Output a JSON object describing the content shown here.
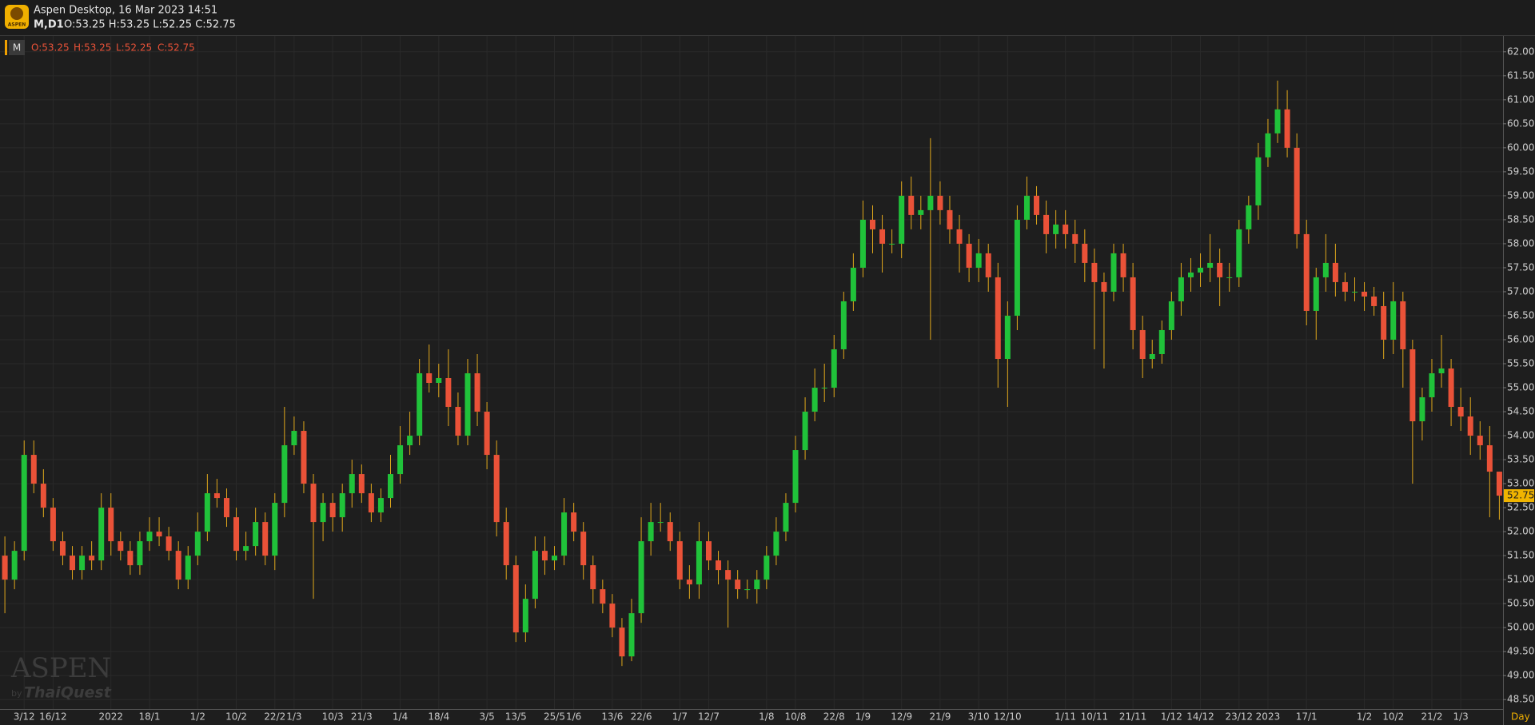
{
  "header": {
    "title": "Aspen Desktop, 16 Mar 2023 14:51",
    "symbol": "M,D1",
    "quote": "O:53.25 H:53.25 L:52.25 C:52.75",
    "logo": "ASPEN"
  },
  "watermark": {
    "brand": "ASPEN",
    "by": "by",
    "company": "ThaiQuest"
  },
  "chart_data": {
    "type": "candlestick",
    "legend": {
      "symbol": "M",
      "open": "O:53.25",
      "high": "H:53.25",
      "low": "L:52.25",
      "close": "C:52.75"
    },
    "x_unit": "Day",
    "up_color": "#20c23a",
    "down_color": "#ea5238",
    "wick_color": "#e0a81c",
    "grid": true,
    "ylim": [
      48.32,
      62.33
    ],
    "yticks": [
      {
        "value": 48.5,
        "label": "48.50"
      },
      {
        "value": 49,
        "label": "49.00"
      },
      {
        "value": 49.5,
        "label": "49.50"
      },
      {
        "value": 50,
        "label": "50.00"
      },
      {
        "value": 50.5,
        "label": "50.50"
      },
      {
        "value": 51,
        "label": "51.00"
      },
      {
        "value": 51.5,
        "label": "51.50"
      },
      {
        "value": 52,
        "label": "52.00"
      },
      {
        "value": 52.5,
        "label": "52.50"
      },
      {
        "value": 53,
        "label": "53.00"
      },
      {
        "value": 53.5,
        "label": "53.50"
      },
      {
        "value": 54,
        "label": "54.00"
      },
      {
        "value": 54.5,
        "label": "54.50"
      },
      {
        "value": 55,
        "label": "55.00"
      },
      {
        "value": 55.5,
        "label": "55.50"
      },
      {
        "value": 56,
        "label": "56.00"
      },
      {
        "value": 56.5,
        "label": "56.50"
      },
      {
        "value": 57,
        "label": "57.00"
      },
      {
        "value": 57.5,
        "label": "57.50"
      },
      {
        "value": 58,
        "label": "58.00"
      },
      {
        "value": 58.5,
        "label": "58.50"
      },
      {
        "value": 59,
        "label": "59.00"
      },
      {
        "value": 59.5,
        "label": "59.50"
      },
      {
        "value": 60,
        "label": "60.00"
      },
      {
        "value": 60.5,
        "label": "60.50"
      },
      {
        "value": 61,
        "label": "61.00"
      },
      {
        "value": 61.5,
        "label": "61.50"
      },
      {
        "value": 62,
        "label": "62.00"
      }
    ],
    "categories": [
      null,
      null,
      "3/12",
      null,
      null,
      "16/12",
      null,
      null,
      null,
      null,
      null,
      "2022",
      null,
      null,
      null,
      "18/1",
      null,
      null,
      null,
      null,
      "1/2",
      null,
      null,
      null,
      "10/2",
      null,
      null,
      null,
      "22/2",
      null,
      "1/3",
      null,
      null,
      null,
      "10/3",
      null,
      null,
      "21/3",
      null,
      null,
      null,
      "1/4",
      null,
      null,
      null,
      "18/4",
      null,
      null,
      null,
      null,
      "3/5",
      null,
      null,
      "13/5",
      null,
      null,
      null,
      "25/5",
      null,
      "1/6",
      null,
      null,
      null,
      "13/6",
      null,
      null,
      "22/6",
      null,
      null,
      null,
      "1/7",
      null,
      null,
      "12/7",
      null,
      null,
      null,
      null,
      null,
      "1/8",
      null,
      null,
      "10/8",
      null,
      null,
      null,
      "22/8",
      null,
      null,
      "1/9",
      null,
      null,
      null,
      "12/9",
      null,
      null,
      null,
      "21/9",
      null,
      null,
      null,
      "3/10",
      null,
      null,
      "12/10",
      null,
      null,
      null,
      null,
      null,
      "1/11",
      null,
      null,
      "10/11",
      null,
      null,
      null,
      "21/11",
      null,
      null,
      null,
      "1/12",
      null,
      null,
      "14/12",
      null,
      null,
      null,
      "23/12",
      null,
      null,
      "2023",
      null,
      null,
      null,
      "17/1",
      null,
      null,
      null,
      null,
      null,
      "1/2",
      null,
      null,
      "10/2",
      null,
      null,
      null,
      "21/2",
      null,
      null,
      "1/3",
      null,
      null,
      null,
      null
    ],
    "open": [
      51.5,
      51.0,
      51.6,
      53.6,
      53.0,
      52.5,
      51.8,
      51.5,
      51.2,
      51.5,
      51.4,
      52.5,
      51.8,
      51.6,
      51.3,
      51.8,
      52.0,
      51.9,
      51.6,
      51.0,
      51.5,
      52.0,
      52.8,
      52.7,
      52.3,
      51.6,
      51.7,
      52.2,
      51.5,
      52.6,
      53.8,
      54.1,
      53.0,
      52.2,
      52.6,
      52.3,
      52.8,
      53.2,
      52.8,
      52.4,
      52.7,
      53.2,
      53.8,
      54.0,
      55.3,
      55.1,
      55.2,
      54.6,
      54.0,
      55.3,
      54.5,
      53.6,
      52.2,
      51.3,
      49.9,
      50.6,
      51.6,
      51.4,
      51.5,
      52.4,
      52.0,
      51.3,
      50.8,
      50.5,
      50.0,
      49.4,
      50.3,
      51.8,
      52.2,
      52.2,
      51.8,
      51.0,
      50.9,
      51.8,
      51.4,
      51.2,
      51.0,
      50.8,
      50.8,
      51.0,
      51.5,
      52.0,
      52.6,
      53.7,
      54.5,
      55.0,
      55.0,
      55.8,
      56.8,
      57.5,
      58.5,
      58.3,
      58.0,
      58.0,
      59.0,
      58.6,
      58.7,
      59.0,
      58.7,
      58.3,
      58.0,
      57.5,
      57.8,
      57.3,
      55.6,
      56.5,
      58.5,
      59.0,
      58.6,
      58.2,
      58.4,
      58.2,
      58.0,
      57.6,
      57.2,
      57.0,
      57.8,
      57.3,
      56.2,
      55.6,
      55.7,
      56.2,
      56.8,
      57.3,
      57.4,
      57.5,
      57.6,
      57.3,
      57.3,
      58.3,
      58.8,
      59.8,
      60.3,
      60.8,
      60.0,
      58.2,
      56.6,
      57.3,
      57.6,
      57.2,
      57.0,
      57.0,
      56.9,
      56.7,
      56.0,
      56.8,
      55.8,
      54.3,
      54.8,
      55.3,
      55.4,
      54.6,
      54.4,
      54.0,
      53.8,
      53.25
    ],
    "high": [
      51.9,
      51.8,
      53.9,
      53.9,
      53.3,
      52.7,
      52.0,
      51.7,
      51.7,
      51.8,
      52.8,
      52.8,
      52.0,
      51.8,
      52.0,
      52.3,
      52.3,
      52.1,
      51.8,
      51.7,
      52.4,
      53.2,
      53.1,
      52.9,
      52.5,
      52.0,
      52.5,
      52.4,
      52.8,
      54.6,
      54.4,
      54.3,
      53.2,
      52.8,
      52.8,
      53.0,
      53.5,
      53.4,
      53.0,
      52.9,
      53.6,
      54.2,
      54.5,
      55.6,
      55.9,
      55.5,
      55.8,
      54.9,
      55.6,
      55.7,
      54.7,
      53.9,
      52.5,
      51.5,
      50.9,
      51.9,
      51.9,
      51.7,
      52.7,
      52.6,
      52.2,
      51.5,
      51.0,
      50.7,
      50.2,
      50.6,
      52.3,
      52.6,
      52.6,
      52.4,
      52.0,
      51.3,
      52.2,
      52.0,
      51.6,
      51.4,
      51.2,
      51.0,
      51.2,
      51.7,
      52.3,
      52.8,
      54.0,
      54.8,
      55.4,
      55.5,
      56.1,
      57.0,
      57.8,
      58.9,
      58.8,
      58.6,
      58.3,
      59.3,
      59.4,
      59.0,
      60.2,
      59.3,
      59.0,
      58.6,
      58.2,
      58.1,
      58.0,
      57.6,
      56.8,
      58.8,
      59.4,
      59.2,
      58.9,
      58.7,
      58.7,
      58.5,
      58.3,
      57.9,
      57.4,
      58.0,
      58.0,
      57.6,
      56.5,
      56.0,
      56.4,
      57.0,
      57.6,
      57.7,
      57.8,
      58.2,
      57.9,
      57.6,
      58.5,
      59.0,
      60.1,
      60.6,
      61.4,
      61.2,
      60.3,
      58.5,
      57.5,
      58.2,
      58.0,
      57.4,
      57.3,
      57.2,
      57.1,
      57.0,
      57.2,
      57.0,
      56.0,
      55.0,
      55.6,
      56.1,
      55.6,
      55.0,
      54.8,
      54.3,
      54.2,
      53.25
    ],
    "low": [
      50.3,
      50.8,
      51.4,
      52.8,
      52.3,
      51.6,
      51.3,
      51.0,
      51.0,
      51.2,
      51.2,
      51.5,
      51.4,
      51.1,
      51.1,
      51.6,
      51.7,
      51.4,
      50.8,
      50.8,
      51.3,
      51.8,
      52.5,
      52.1,
      51.4,
      51.4,
      51.5,
      51.3,
      51.2,
      52.3,
      53.6,
      52.8,
      50.6,
      51.8,
      52.0,
      52.0,
      52.5,
      52.6,
      52.2,
      52.2,
      52.5,
      53.0,
      53.6,
      53.8,
      54.9,
      54.8,
      54.2,
      53.8,
      53.8,
      54.2,
      53.3,
      51.9,
      51.0,
      49.7,
      49.7,
      50.4,
      51.1,
      51.2,
      51.3,
      51.8,
      51.0,
      50.5,
      50.3,
      49.8,
      49.2,
      49.3,
      50.1,
      51.5,
      52.0,
      51.6,
      50.8,
      50.6,
      50.6,
      51.2,
      50.9,
      50.0,
      50.6,
      50.6,
      50.5,
      50.8,
      51.3,
      51.8,
      52.4,
      53.5,
      54.3,
      54.7,
      54.8,
      55.6,
      56.6,
      57.3,
      57.8,
      57.4,
      57.8,
      57.7,
      58.3,
      58.3,
      56.0,
      58.4,
      58.0,
      57.4,
      57.2,
      57.2,
      57.0,
      55.0,
      54.6,
      56.2,
      58.3,
      58.4,
      57.8,
      57.9,
      57.9,
      57.6,
      57.2,
      55.8,
      55.4,
      56.8,
      57.0,
      55.8,
      55.2,
      55.4,
      55.5,
      56.0,
      56.5,
      57.0,
      57.1,
      57.2,
      56.7,
      57.0,
      57.1,
      58.0,
      58.5,
      59.6,
      60.1,
      59.8,
      57.9,
      56.3,
      56.0,
      57.0,
      56.9,
      56.8,
      56.8,
      56.6,
      56.5,
      55.6,
      55.7,
      55.0,
      53.0,
      53.9,
      54.5,
      55.0,
      54.2,
      54.1,
      53.6,
      53.5,
      52.3,
      52.25
    ],
    "close": [
      51.0,
      51.6,
      53.6,
      53.0,
      52.5,
      51.8,
      51.5,
      51.2,
      51.5,
      51.4,
      52.5,
      51.8,
      51.6,
      51.3,
      51.8,
      52.0,
      51.9,
      51.6,
      51.0,
      51.5,
      52.0,
      52.8,
      52.7,
      52.3,
      51.6,
      51.7,
      52.2,
      51.5,
      52.6,
      53.8,
      54.1,
      53.0,
      52.2,
      52.6,
      52.3,
      52.8,
      53.2,
      52.8,
      52.4,
      52.7,
      53.2,
      53.8,
      54.0,
      55.3,
      55.1,
      55.2,
      54.6,
      54.0,
      55.3,
      54.5,
      53.6,
      52.2,
      51.3,
      49.9,
      50.6,
      51.6,
      51.4,
      51.5,
      52.4,
      52.0,
      51.3,
      50.8,
      50.5,
      50.0,
      49.4,
      50.3,
      51.8,
      52.2,
      52.2,
      51.8,
      51.0,
      50.9,
      51.8,
      51.4,
      51.2,
      51.0,
      50.8,
      50.8,
      51.0,
      51.5,
      52.0,
      52.6,
      53.7,
      54.5,
      55.0,
      55.0,
      55.8,
      56.8,
      57.5,
      58.5,
      58.3,
      58.0,
      58.0,
      59.0,
      58.6,
      58.7,
      59.0,
      58.7,
      58.3,
      58.0,
      57.5,
      57.8,
      57.3,
      55.6,
      56.5,
      58.5,
      59.0,
      58.6,
      58.2,
      58.4,
      58.2,
      58.0,
      57.6,
      57.2,
      57.0,
      57.8,
      57.3,
      56.2,
      55.6,
      55.7,
      56.2,
      56.8,
      57.3,
      57.4,
      57.5,
      57.6,
      57.3,
      57.3,
      58.3,
      58.8,
      59.8,
      60.3,
      60.8,
      60.0,
      58.2,
      56.6,
      57.3,
      57.6,
      57.2,
      57.0,
      57.0,
      56.9,
      56.7,
      56.0,
      56.8,
      55.8,
      54.3,
      54.8,
      55.3,
      55.4,
      54.6,
      54.4,
      54.0,
      53.8,
      53.25,
      52.75
    ]
  }
}
